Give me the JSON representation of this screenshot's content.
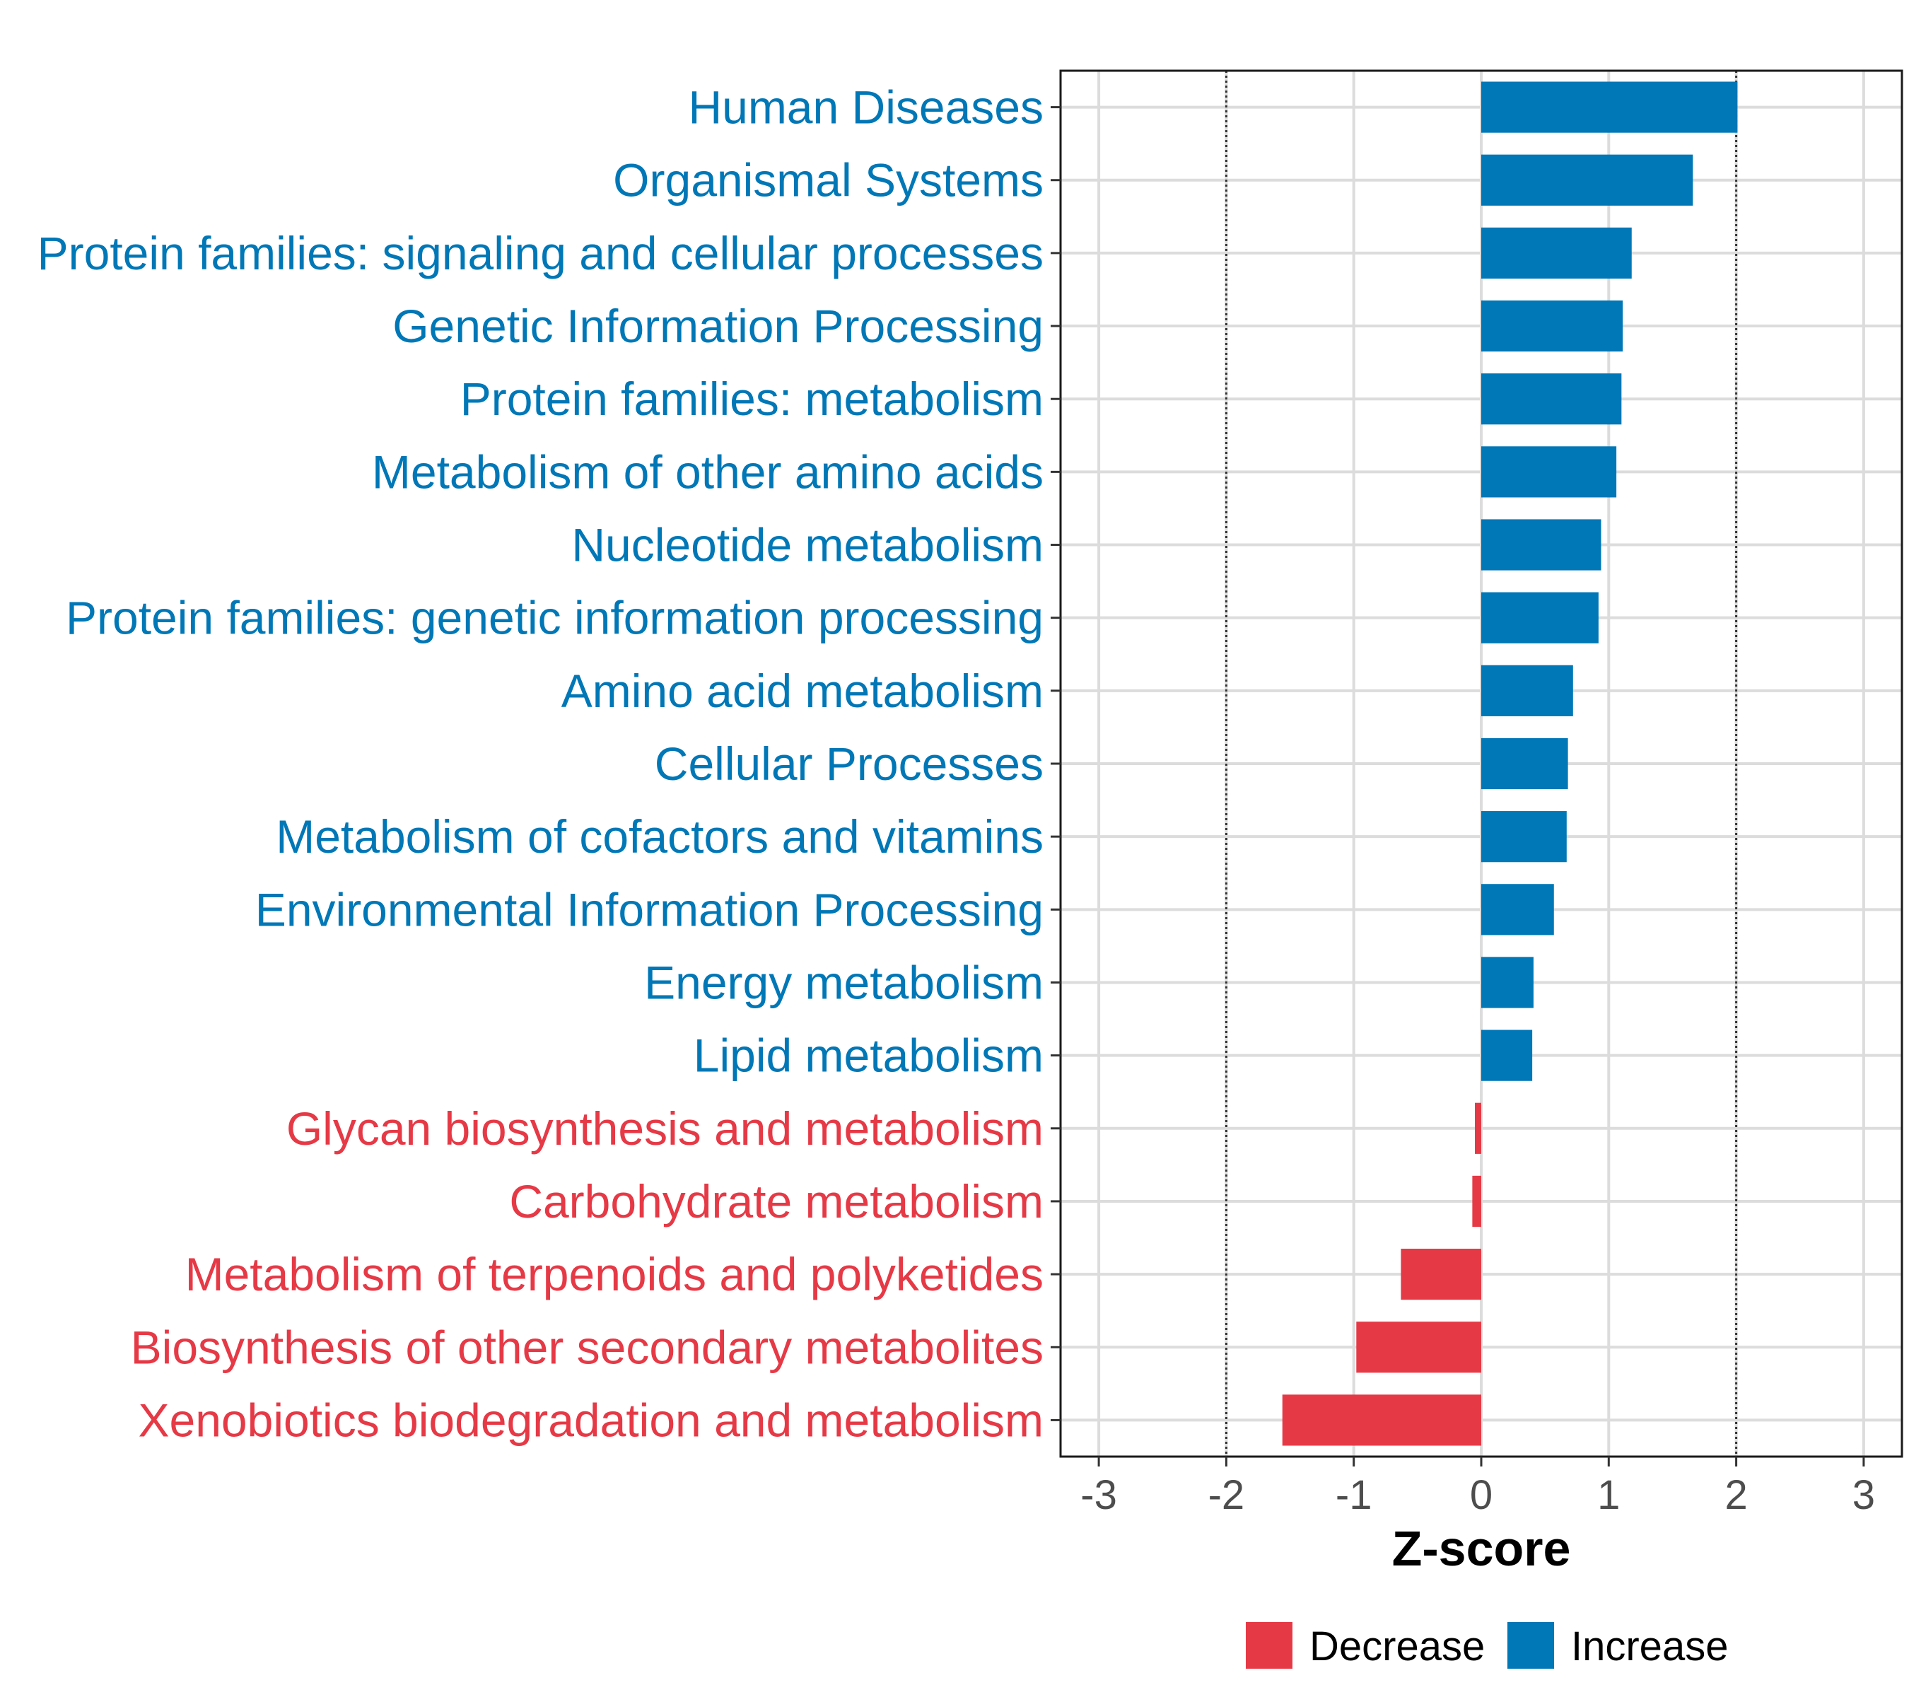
{
  "chart_data": {
    "type": "bar",
    "orientation": "horizontal",
    "title": "",
    "xlabel": "Z-score",
    "ylabel": "",
    "xlim": [
      -3.3,
      3.3
    ],
    "xticks": [
      -3,
      -2,
      -1,
      0,
      1,
      2,
      3
    ],
    "xtick_labels": [
      "-3",
      "-2",
      "-1",
      "0",
      "1",
      "2",
      "3"
    ],
    "reference_lines": [
      -2,
      2
    ],
    "grid": true,
    "categories": [
      "Human Diseases",
      "Organismal Systems",
      "Protein families: signaling and cellular processes",
      "Genetic Information Processing",
      "Protein families: metabolism",
      "Metabolism of other amino acids",
      "Nucleotide metabolism",
      "Protein families: genetic information processing",
      "Amino acid metabolism",
      "Cellular Processes",
      "Metabolism of cofactors and vitamins",
      "Environmental Information Processing",
      "Energy metabolism",
      "Lipid metabolism",
      "Glycan biosynthesis and metabolism",
      "Carbohydrate metabolism",
      "Metabolism of terpenoids and polyketides",
      "Biosynthesis of other secondary metabolites",
      "Xenobiotics biodegradation and metabolism"
    ],
    "values": [
      2.01,
      1.66,
      1.18,
      1.11,
      1.1,
      1.06,
      0.94,
      0.92,
      0.72,
      0.68,
      0.67,
      0.57,
      0.41,
      0.4,
      -0.05,
      -0.07,
      -0.63,
      -0.98,
      -1.56
    ],
    "groups": [
      "Increase",
      "Increase",
      "Increase",
      "Increase",
      "Increase",
      "Increase",
      "Increase",
      "Increase",
      "Increase",
      "Increase",
      "Increase",
      "Increase",
      "Increase",
      "Increase",
      "Decrease",
      "Decrease",
      "Decrease",
      "Decrease",
      "Decrease"
    ],
    "legend": {
      "position": "bottom",
      "entries": [
        {
          "name": "Decrease",
          "color": "#E63946"
        },
        {
          "name": "Increase",
          "color": "#0077B6"
        }
      ]
    }
  }
}
